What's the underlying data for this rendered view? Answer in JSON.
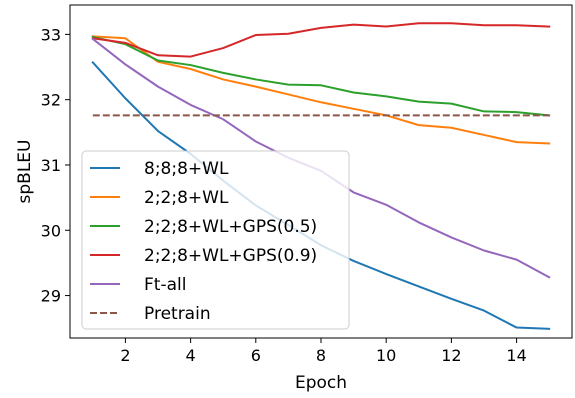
{
  "chart_data": {
    "type": "line",
    "title": "",
    "xlabel": "Epoch",
    "ylabel": "spBLEU",
    "xlim": [
      0.3,
      15.7
    ],
    "ylim": [
      28.35,
      33.45
    ],
    "xticks": [
      2,
      4,
      6,
      8,
      10,
      12,
      14
    ],
    "yticks": [
      29,
      30,
      31,
      32,
      33
    ],
    "grid": false,
    "legend_position": "lower-left",
    "x": [
      1,
      2,
      3,
      4,
      5,
      6,
      7,
      8,
      9,
      10,
      11,
      12,
      13,
      14,
      15
    ],
    "series": [
      {
        "name": "8;8;8+WL",
        "color": "#1f77b4",
        "style": "solid",
        "values": [
          32.57,
          32.02,
          31.52,
          31.17,
          30.76,
          30.38,
          30.08,
          29.77,
          29.53,
          29.33,
          29.14,
          28.95,
          28.77,
          28.51,
          28.49
        ]
      },
      {
        "name": "2;2;8+WL",
        "color": "#ff7f0e",
        "style": "solid",
        "values": [
          32.97,
          32.94,
          32.58,
          32.47,
          32.31,
          32.2,
          32.08,
          31.96,
          31.86,
          31.76,
          31.61,
          31.57,
          31.46,
          31.35,
          31.33
        ]
      },
      {
        "name": "2;2;8+WL+GPS(0.5)",
        "color": "#2ca02c",
        "style": "solid",
        "values": [
          32.96,
          32.85,
          32.6,
          32.53,
          32.41,
          32.31,
          32.23,
          32.22,
          32.11,
          32.05,
          31.97,
          31.94,
          31.82,
          31.81,
          31.76
        ]
      },
      {
        "name": "2;2;8+WL+GPS(0.9)",
        "color": "#d62728",
        "style": "solid",
        "values": [
          32.94,
          32.87,
          32.68,
          32.66,
          32.79,
          32.99,
          33.01,
          33.1,
          33.15,
          33.12,
          33.17,
          33.17,
          33.14,
          33.14,
          33.12
        ]
      },
      {
        "name": "Ft-all",
        "color": "#9467bd",
        "style": "solid",
        "values": [
          32.93,
          32.54,
          32.2,
          31.92,
          31.7,
          31.36,
          31.11,
          30.91,
          30.58,
          30.39,
          30.12,
          29.89,
          29.69,
          29.55,
          29.28
        ]
      },
      {
        "name": "Pretrain",
        "color": "#8c564b",
        "style": "dashed",
        "values": [
          31.76,
          31.76,
          31.76,
          31.76,
          31.76,
          31.76,
          31.76,
          31.76,
          31.76,
          31.76,
          31.76,
          31.76,
          31.76,
          31.76,
          31.76
        ]
      }
    ]
  }
}
